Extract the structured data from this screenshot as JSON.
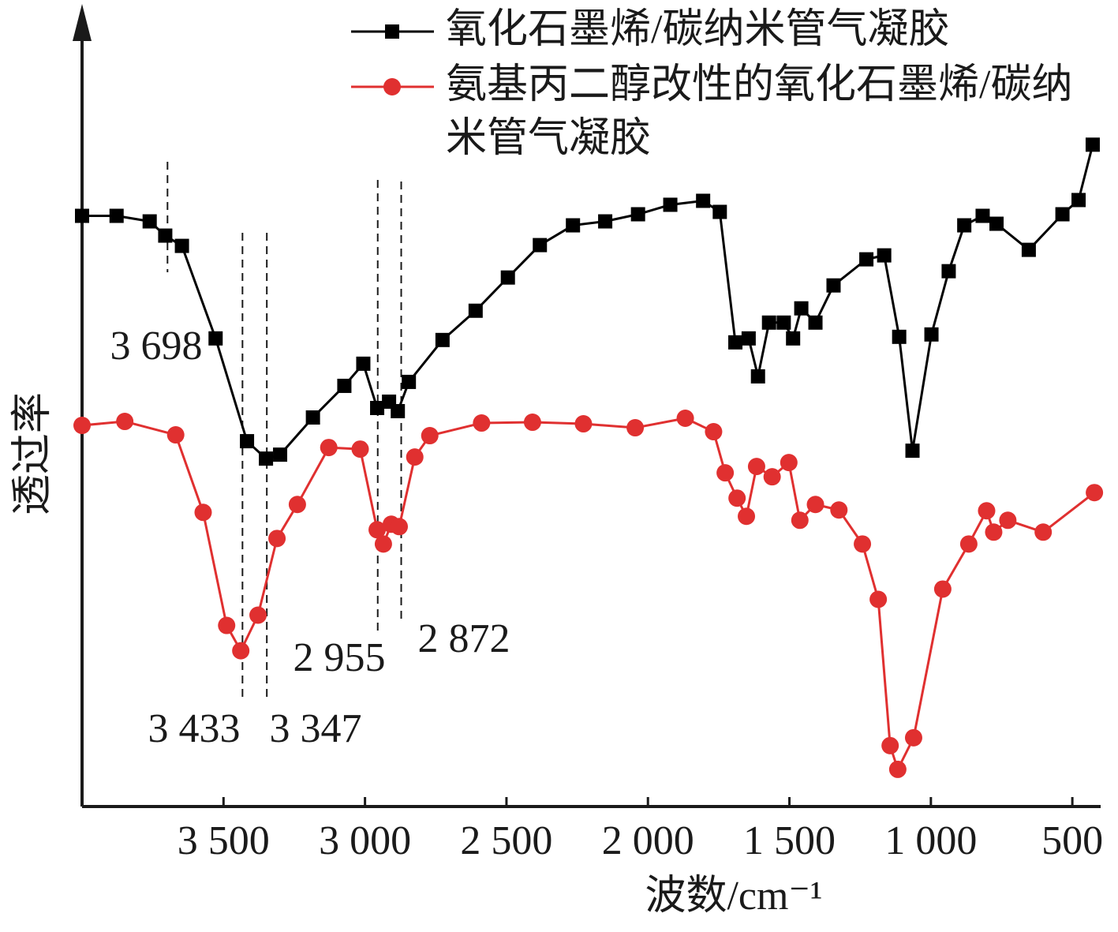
{
  "chart_data": {
    "type": "line",
    "xlabel": "波数/cm⁻¹",
    "ylabel": "透过率",
    "xlim": [
      4000,
      400
    ],
    "ylim": [
      0,
      100
    ],
    "xticks": [
      {
        "value": 3500,
        "label": "3 500"
      },
      {
        "value": 3000,
        "label": "3 000"
      },
      {
        "value": 2500,
        "label": "2 500"
      },
      {
        "value": 2000,
        "label": "2 000"
      },
      {
        "value": 1500,
        "label": "1 500"
      },
      {
        "value": 1000,
        "label": "1 000"
      },
      500
    ],
    "legend": "upper right",
    "series": [
      {
        "name": "氧化石墨烯/碳纳米管气凝胶",
        "color": "#000000",
        "marker": "square",
        "x": [
          4000,
          3878,
          3761,
          3706,
          3647,
          3528,
          3417,
          3350,
          3300,
          3184,
          3073,
          3006,
          2957,
          2915,
          2884,
          2845,
          2726,
          2609,
          2495,
          2382,
          2265,
          2151,
          2035,
          1921,
          1805,
          1746,
          1691,
          1644,
          1611,
          1572,
          1520,
          1487,
          1458,
          1408,
          1344,
          1228,
          1165,
          1112,
          1065,
          998,
          937,
          882,
          817,
          768,
          654,
          535,
          478,
          428
        ],
        "values": [
          74.7,
          74.7,
          74,
          72.2,
          70.9,
          59.2,
          46.2,
          44,
          44.5,
          49.2,
          53.2,
          56,
          50.4,
          51.2,
          50,
          53.7,
          59,
          62.7,
          66.9,
          71,
          73.5,
          74,
          74.9,
          76.1,
          76.6,
          75.2,
          58.7,
          59.2,
          54.4,
          61.2,
          61.2,
          59.2,
          63,
          61.2,
          65.9,
          69.2,
          69.7,
          59.4,
          45,
          59.7,
          67.7,
          73.5,
          74.7,
          73.7,
          70.4,
          74.9,
          76.7,
          83.7
        ]
      },
      {
        "name": "氨基丙二醇改性的氧化石墨烯/碳纳米管气凝胶",
        "color": "#e03030",
        "marker": "circle",
        "x": [
          4000,
          3849,
          3669,
          3572,
          3489,
          3439,
          3378,
          3311,
          3239,
          3128,
          3017,
          2957,
          2935,
          2907,
          2879,
          2824,
          2771,
          2588,
          2408,
          2228,
          2045,
          1868,
          1768,
          1727,
          1685,
          1652,
          1616,
          1561,
          1502,
          1463,
          1408,
          1325,
          1242,
          1186,
          1144,
          1117,
          1061,
          958,
          866,
          803,
          778,
          728,
          603,
          422
        ],
        "values": [
          48.2,
          48.7,
          47,
          37.2,
          22.9,
          19.7,
          24.2,
          33.9,
          38.2,
          45.4,
          45.2,
          35,
          33.2,
          35.7,
          35.4,
          44.2,
          46.9,
          48.5,
          48.6,
          48.4,
          47.9,
          49.1,
          47.4,
          42.2,
          39,
          36.7,
          43,
          41.7,
          43.5,
          36.2,
          38.2,
          37.5,
          33.2,
          26.2,
          7.7,
          4.7,
          8.7,
          27.5,
          33.2,
          37.4,
          34.7,
          36.2,
          34.7,
          39.7
        ]
      }
    ],
    "annotations": [
      {
        "label": "3 698",
        "x": 3698
      },
      {
        "label": "3 433",
        "x": 3433
      },
      {
        "label": "3 347",
        "x": 3347
      },
      {
        "label": "2 955",
        "x": 2955
      },
      {
        "label": "2 872",
        "x": 2872
      }
    ]
  }
}
